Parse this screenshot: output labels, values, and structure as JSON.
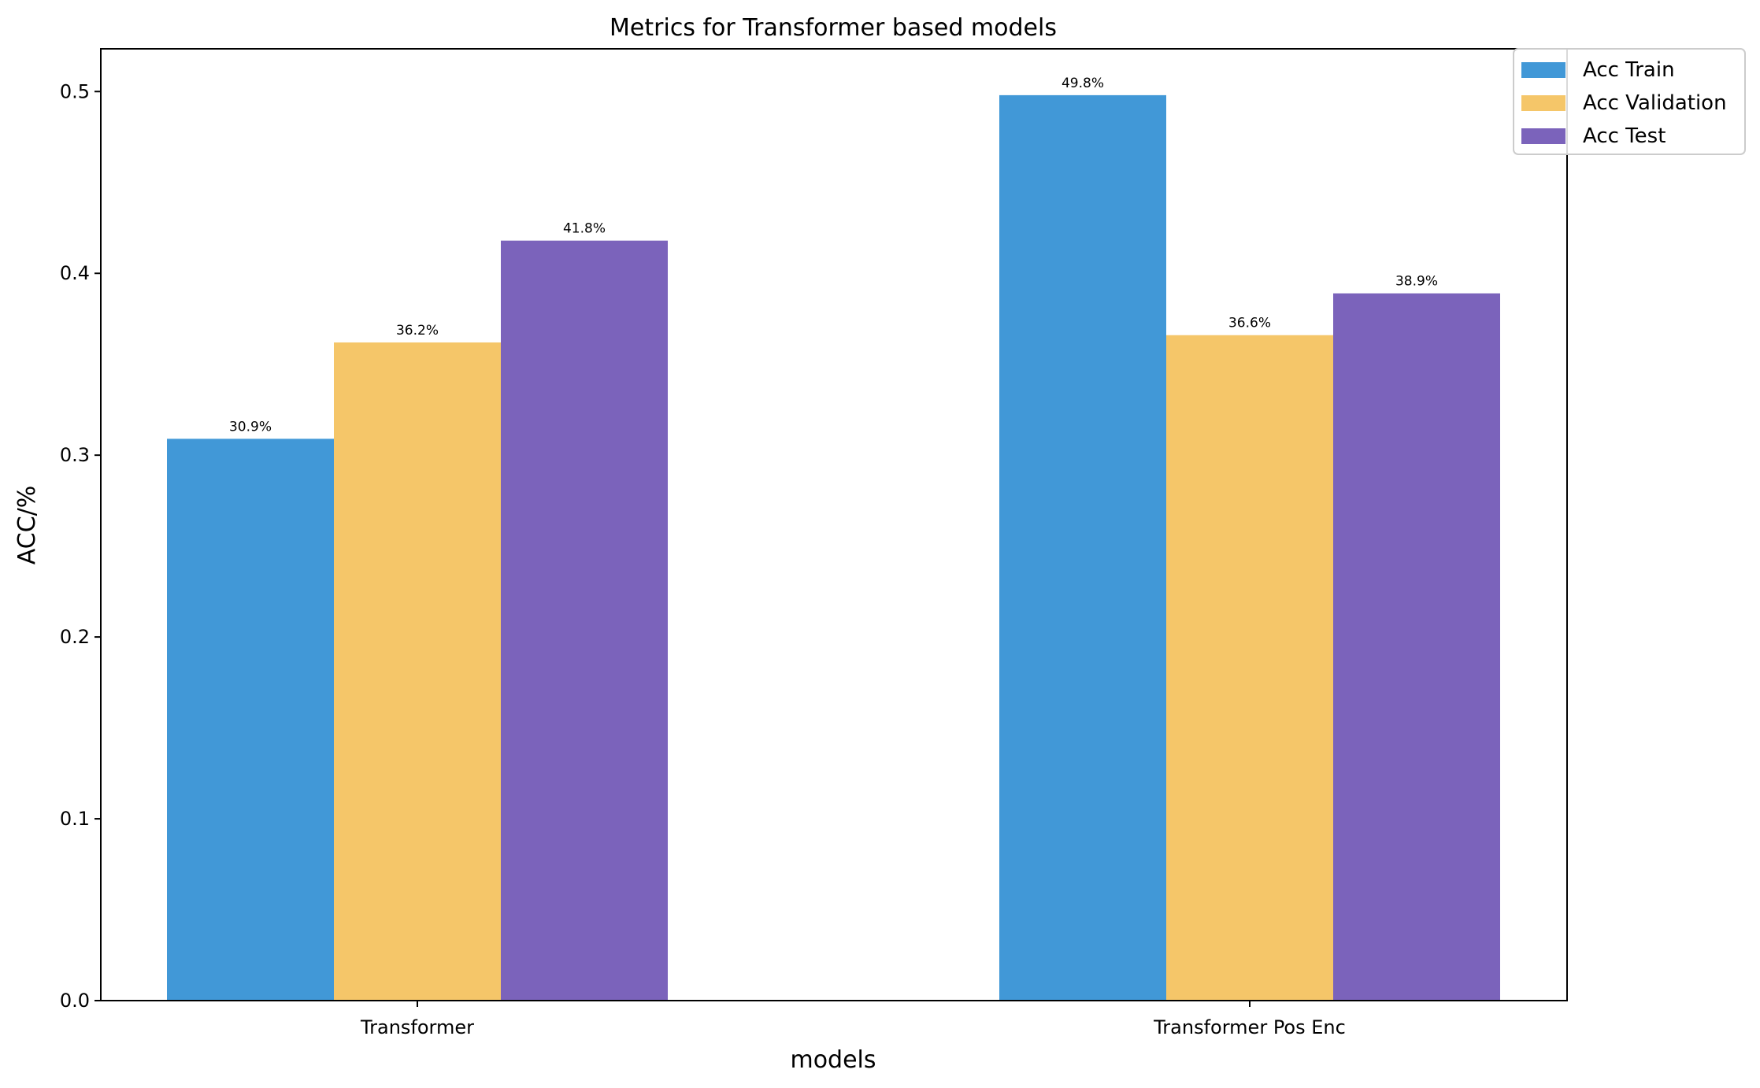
{
  "chart_data": {
    "type": "bar",
    "title": "Metrics for Transformer based models",
    "xlabel": "models",
    "ylabel": "ACC/%",
    "categories": [
      "Transformer",
      "Transformer Pos Enc"
    ],
    "series": [
      {
        "name": "Acc Train",
        "values": [
          0.309,
          0.498
        ],
        "labels": [
          "30.9%",
          "49.8%"
        ],
        "color": "#4198d7"
      },
      {
        "name": "Acc Validation",
        "values": [
          0.362,
          0.366
        ],
        "labels": [
          "36.2%",
          "36.6%"
        ],
        "color": "#f5c669"
      },
      {
        "name": "Acc Test",
        "values": [
          0.418,
          0.389
        ],
        "labels": [
          "41.8%",
          "38.9%"
        ],
        "color": "#7b63bb"
      }
    ],
    "ylim": [
      0,
      0.5235
    ],
    "yticks": [
      0.0,
      0.1,
      0.2,
      0.3,
      0.4,
      0.5
    ],
    "ytick_labels": [
      "0.0",
      "0.1",
      "0.2",
      "0.3",
      "0.4",
      "0.5"
    ],
    "grid": false,
    "legend_position": "top-right"
  }
}
